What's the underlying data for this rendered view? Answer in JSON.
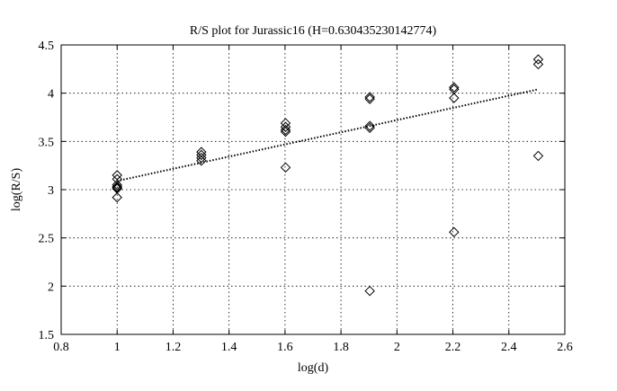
{
  "chart_data": {
    "type": "scatter",
    "title": "R/S plot for Jurassic16 (H=0.630435230142774)",
    "xlabel": "log(d)",
    "ylabel": "log(R/S)",
    "xlim": [
      0.8,
      2.6
    ],
    "ylim": [
      1.5,
      4.5
    ],
    "xticks": [
      0.8,
      1,
      1.2,
      1.4,
      1.6,
      1.8,
      2,
      2.2,
      2.4,
      2.6
    ],
    "yticks": [
      1.5,
      2,
      2.5,
      3,
      3.5,
      4,
      4.5
    ],
    "xtick_labels": [
      "0.8",
      "1",
      "1.2",
      "1.4",
      "1.6",
      "1.8",
      "2",
      "2.2",
      "2.4",
      "2.6"
    ],
    "ytick_labels": [
      "1.5",
      "2",
      "2.5",
      "3",
      "3.5",
      "4",
      "4.5"
    ],
    "grid": true,
    "series": [
      {
        "marker": "diamond",
        "points": [
          [
            1.0,
            3.15
          ],
          [
            1.0,
            3.11
          ],
          [
            1.0,
            3.05
          ],
          [
            1.0,
            3.03
          ],
          [
            1.0,
            3.02
          ],
          [
            1.0,
            3.01
          ],
          [
            1.0,
            2.92
          ],
          [
            1.301,
            3.39
          ],
          [
            1.301,
            3.36
          ],
          [
            1.301,
            3.33
          ],
          [
            1.301,
            3.3
          ],
          [
            1.602,
            3.69
          ],
          [
            1.602,
            3.65
          ],
          [
            1.602,
            3.62
          ],
          [
            1.602,
            3.6
          ],
          [
            1.602,
            3.23
          ],
          [
            1.903,
            3.96
          ],
          [
            1.903,
            3.94
          ],
          [
            1.903,
            3.66
          ],
          [
            1.903,
            3.64
          ],
          [
            1.903,
            1.95
          ],
          [
            2.204,
            4.06
          ],
          [
            2.204,
            4.04
          ],
          [
            2.204,
            3.95
          ],
          [
            2.204,
            2.56
          ],
          [
            2.505,
            4.35
          ],
          [
            2.505,
            4.3
          ],
          [
            2.505,
            3.35
          ]
        ]
      },
      {
        "style": "dotted-line",
        "points": [
          [
            1.0,
            3.09
          ],
          [
            2.505,
            4.04
          ]
        ]
      }
    ]
  }
}
